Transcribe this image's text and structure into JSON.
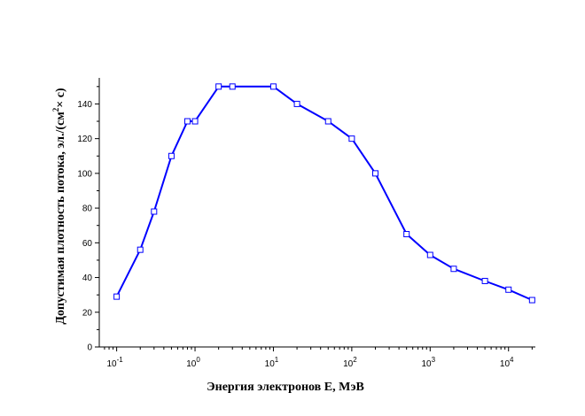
{
  "chart_data": {
    "type": "line",
    "title": "",
    "xlabel": "Энергия электронов Е, МэВ",
    "ylabel_prefix": "Допустимая плотность потока, эл./(см",
    "ylabel_sup": "2",
    "ylabel_suffix": "× с)",
    "xscale": "log",
    "xlim": [
      0.06,
      22000
    ],
    "ylim": [
      0,
      155
    ],
    "grid": false,
    "line_color": "#0000ff",
    "marker": "open-square",
    "x_ticks": [
      {
        "value": 0.1,
        "base": "10",
        "exp": "-1"
      },
      {
        "value": 1,
        "base": "10",
        "exp": "0"
      },
      {
        "value": 10,
        "base": "10",
        "exp": "1"
      },
      {
        "value": 100,
        "base": "10",
        "exp": "2"
      },
      {
        "value": 1000,
        "base": "10",
        "exp": "3"
      },
      {
        "value": 10000,
        "base": "10",
        "exp": "4"
      }
    ],
    "y_ticks": [
      "0",
      "20",
      "40",
      "60",
      "80",
      "100",
      "120",
      "140"
    ],
    "series": [
      {
        "x": [
          0.1,
          0.2,
          0.3,
          0.5,
          0.8,
          1,
          2,
          3,
          10,
          20,
          50,
          100,
          200,
          500,
          1000,
          2000,
          5000,
          10000,
          20000
        ],
        "y": [
          29,
          56,
          78,
          110,
          130,
          130,
          150,
          150,
          150,
          140,
          130,
          120,
          100,
          65,
          53,
          45,
          38,
          33,
          27
        ]
      }
    ]
  }
}
